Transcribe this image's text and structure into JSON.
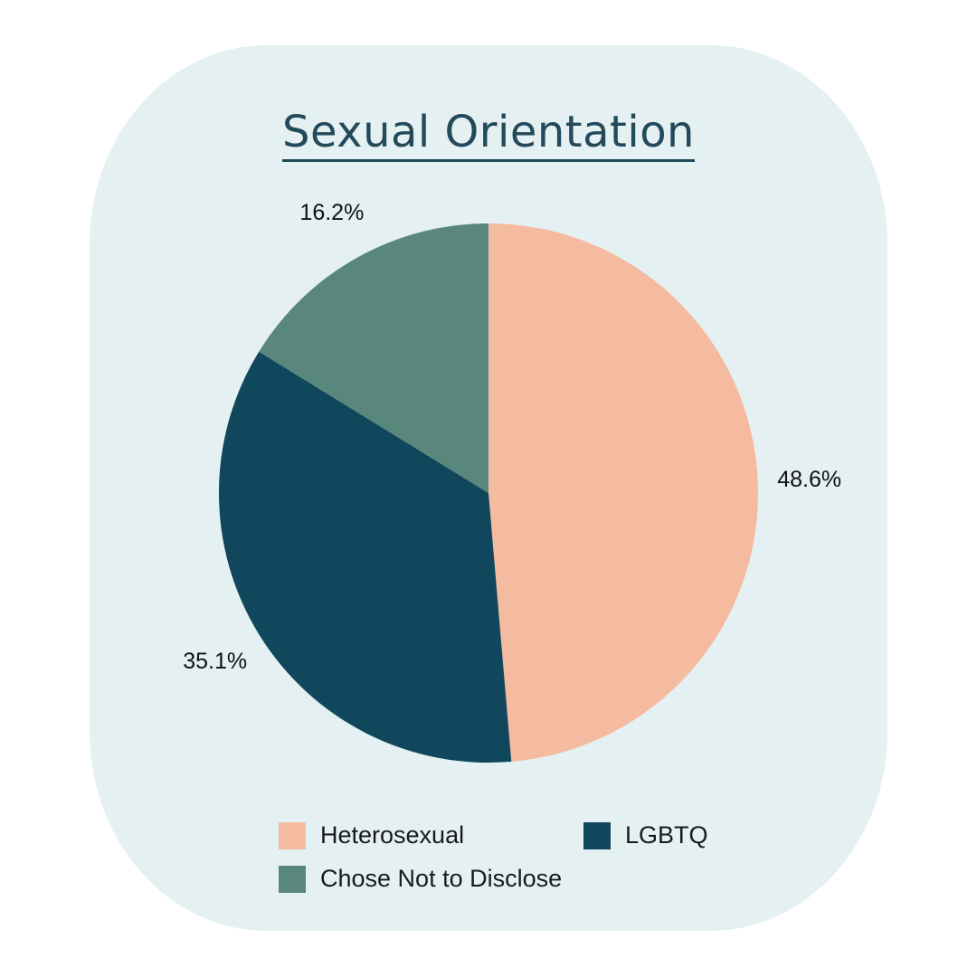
{
  "chart_data": {
    "type": "pie",
    "title": "Sexual Orientation",
    "slices": [
      {
        "name": "Heterosexual",
        "value": 48.6,
        "label": "48.6%",
        "color": "#f5bba0"
      },
      {
        "name": "LGBTQ",
        "value": 35.1,
        "label": "35.1%",
        "color": "#10475c"
      },
      {
        "name": "Chose Not to Disclose",
        "value": 16.2,
        "label": "16.2%",
        "color": "#5a877c"
      }
    ],
    "start_angle": "12 o'clock",
    "direction": "clockwise",
    "legend_position": "bottom"
  }
}
